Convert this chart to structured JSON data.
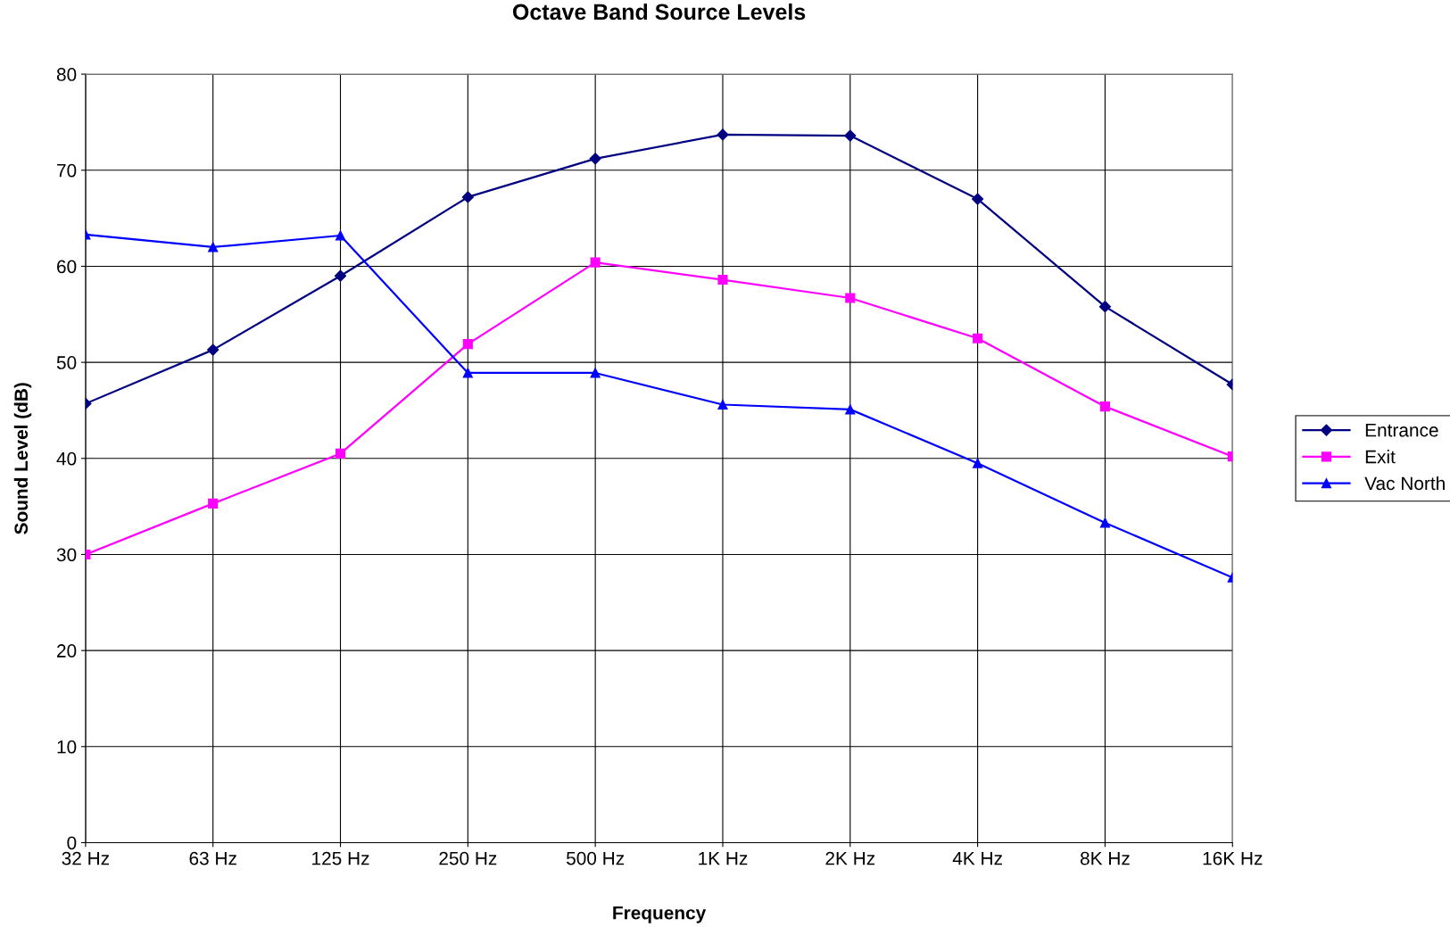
{
  "chart_data": {
    "type": "line",
    "title": "Octave Band Source Levels",
    "xlabel": "Frequency",
    "ylabel": "Sound Level (dB)",
    "categories": [
      "32 Hz",
      "63 Hz",
      "125 Hz",
      "250 Hz",
      "500 Hz",
      "1K Hz",
      "2K Hz",
      "4K Hz",
      "8K Hz",
      "16K Hz"
    ],
    "series": [
      {
        "name": "Entrance",
        "color": "#000080",
        "marker": "diamond",
        "values": [
          45.7,
          51.3,
          59.0,
          67.2,
          71.2,
          73.7,
          73.6,
          67.0,
          55.8,
          47.7
        ]
      },
      {
        "name": "Exit",
        "color": "#ff00ff",
        "marker": "square",
        "values": [
          30.0,
          35.3,
          40.5,
          51.9,
          60.4,
          58.6,
          56.7,
          52.5,
          45.4,
          40.2
        ]
      },
      {
        "name": "Vac North",
        "color": "#0000ff",
        "marker": "triangle",
        "values": [
          63.3,
          62.0,
          63.2,
          48.9,
          48.9,
          45.6,
          45.1,
          39.5,
          33.3,
          27.6
        ]
      }
    ],
    "ylim": [
      0,
      80
    ],
    "yticks": [
      0,
      10,
      20,
      30,
      40,
      50,
      60,
      70,
      80
    ],
    "grid": true,
    "legend": "right",
    "line_style": "solid"
  }
}
